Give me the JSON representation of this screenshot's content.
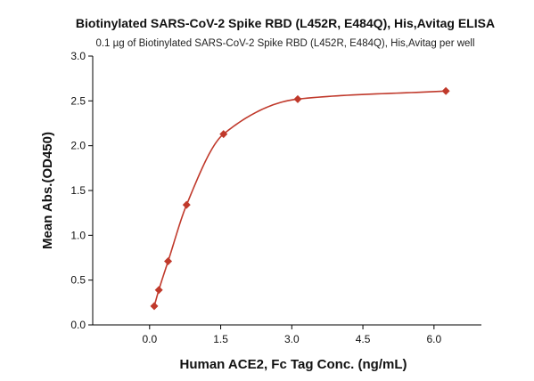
{
  "chart_data": {
    "type": "scatter",
    "title": "Biotinylated SARS-CoV-2 Spike RBD (L452R, E484Q), His,Avitag ELISA",
    "subtitle": "0.1 µg of Biotinylated SARS-CoV-2 Spike RBD (L452R, E484Q), His,Avitag per well",
    "xlabel": "Human ACE2, Fc Tag Conc. (ng/mL)",
    "ylabel": "Mean Abs.(OD450)",
    "xlim": [
      -1.2,
      7.0
    ],
    "ylim": [
      0.0,
      3.0
    ],
    "x_ticks": [
      "0.0",
      "1.5",
      "3.0",
      "4.5",
      "6.0"
    ],
    "y_ticks": [
      "0.0",
      "0.5",
      "1.0",
      "1.5",
      "2.0",
      "2.5",
      "3.0"
    ],
    "grid": false,
    "series": [
      {
        "marker": "diamond",
        "x": [
          0.098,
          0.195,
          0.39,
          0.78,
          1.56,
          3.125,
          6.25
        ],
        "y": [
          0.21,
          0.39,
          0.71,
          1.34,
          2.13,
          2.52,
          2.61
        ]
      }
    ],
    "fit_curve": true,
    "color": "#c0392b"
  }
}
